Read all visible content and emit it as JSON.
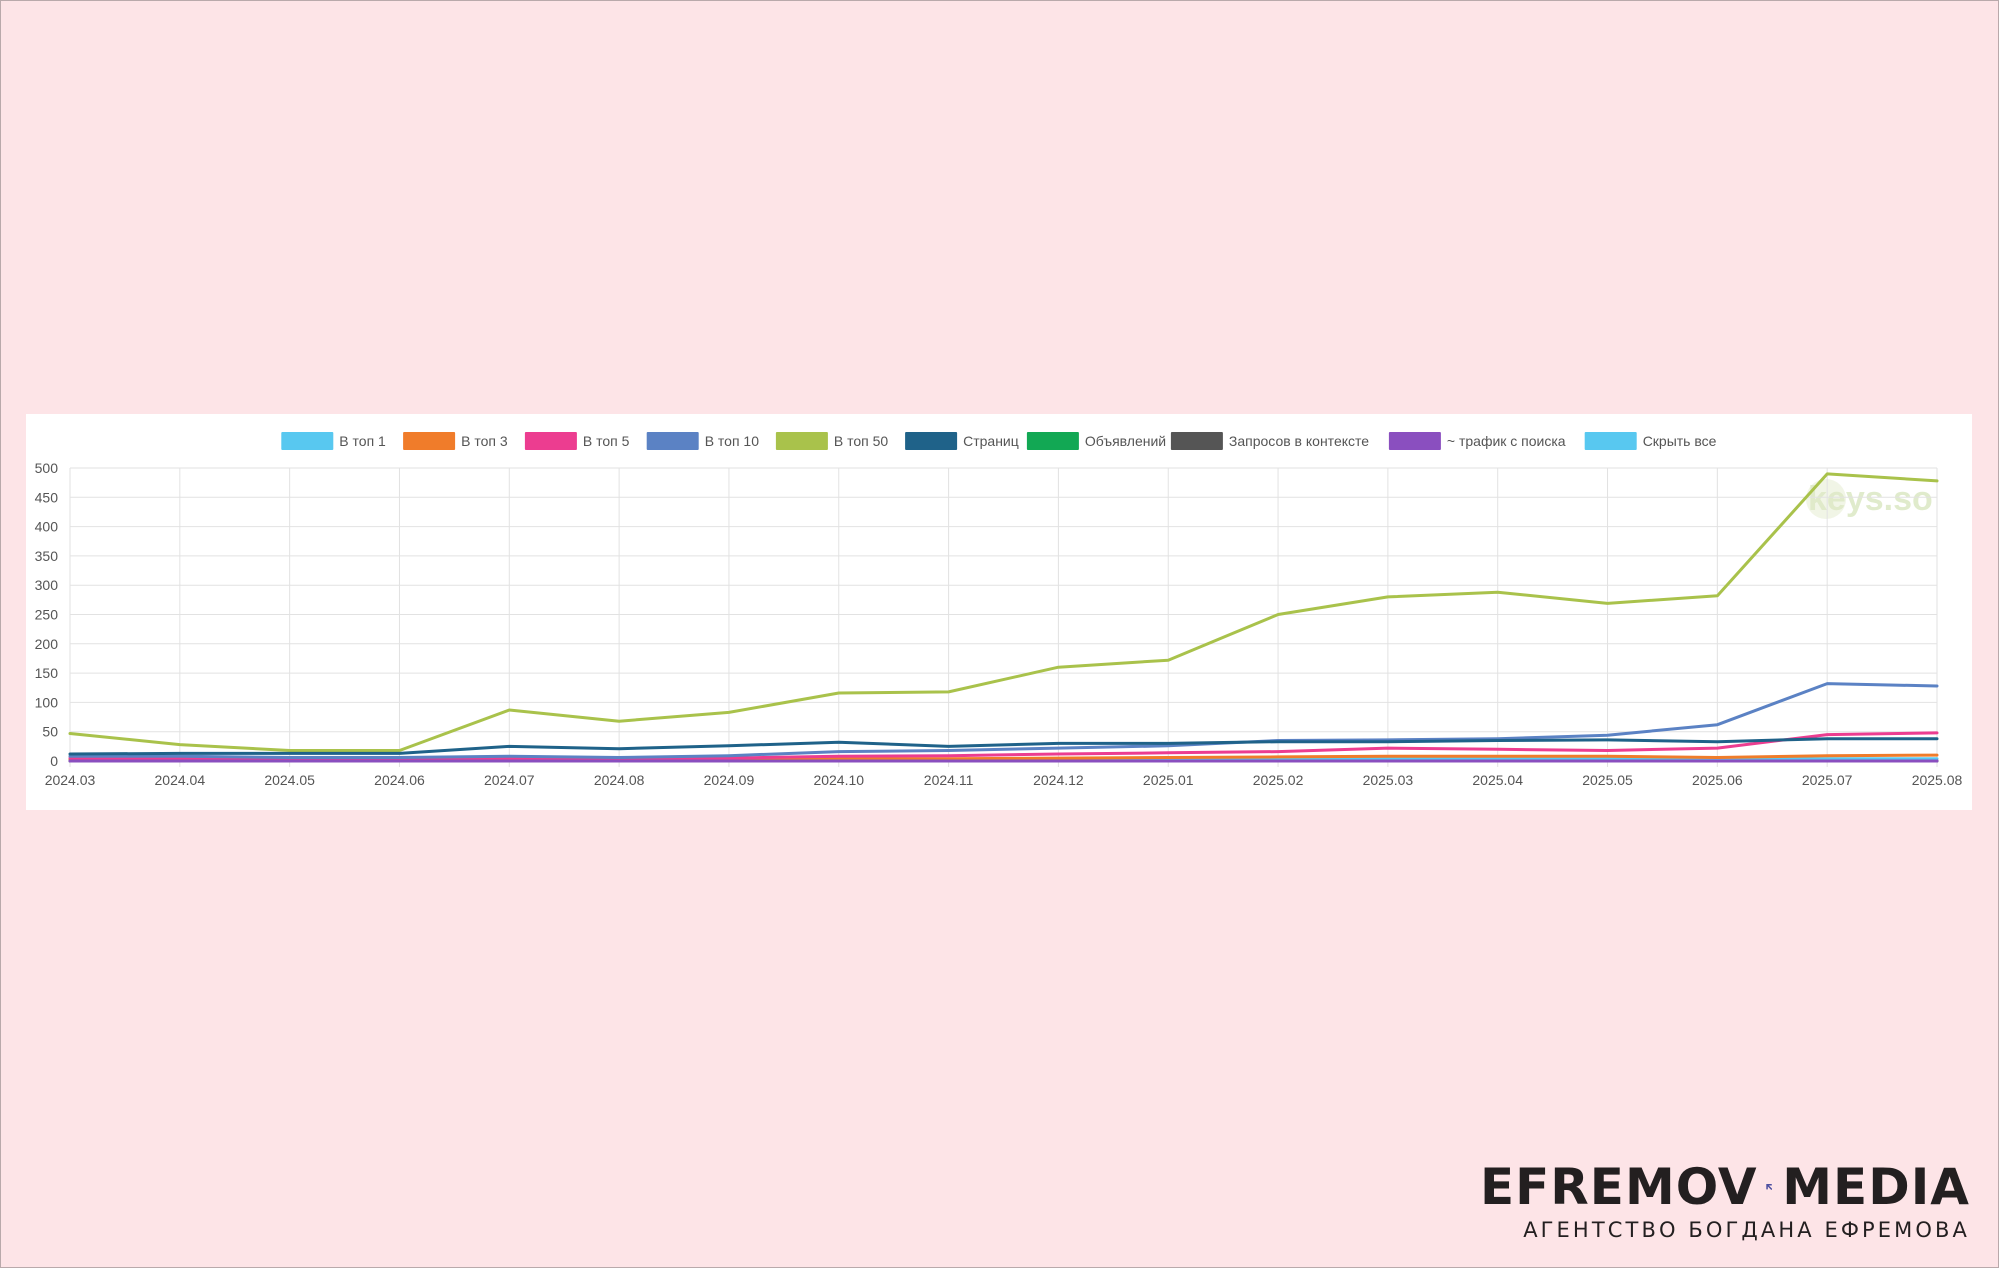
{
  "chart_data": {
    "type": "line",
    "title": "",
    "xlabel": "",
    "ylabel": "",
    "ylim": [
      0,
      500
    ],
    "yticks": [
      0,
      50,
      100,
      150,
      200,
      250,
      300,
      350,
      400,
      450,
      500
    ],
    "grid": true,
    "legend_position": "top",
    "x": [
      "2024.03",
      "2024.04",
      "2024.05",
      "2024.06",
      "2024.07",
      "2024.08",
      "2024.09",
      "2024.10",
      "2024.11",
      "2024.12",
      "2025.01",
      "2025.02",
      "2025.03",
      "2025.04",
      "2025.05",
      "2025.06",
      "2025.07",
      "2025.08"
    ],
    "series": [
      {
        "name": "В топ 1",
        "color": "#58c8f0",
        "values": [
          2,
          2,
          2,
          2,
          2,
          1,
          2,
          2,
          2,
          3,
          3,
          3,
          4,
          4,
          4,
          3,
          4,
          4
        ]
      },
      {
        "name": "В топ 3",
        "color": "#f07c2a",
        "values": [
          3,
          3,
          3,
          3,
          3,
          2,
          3,
          4,
          4,
          5,
          6,
          7,
          8,
          8,
          8,
          6,
          9,
          10
        ]
      },
      {
        "name": "В топ 5",
        "color": "#ec3d90",
        "values": [
          5,
          5,
          5,
          5,
          5,
          3,
          5,
          8,
          9,
          12,
          14,
          16,
          22,
          20,
          18,
          22,
          45,
          48
        ]
      },
      {
        "name": "В топ 10",
        "color": "#5b82c4",
        "values": [
          8,
          8,
          6,
          6,
          8,
          6,
          9,
          16,
          18,
          22,
          26,
          35,
          36,
          38,
          44,
          62,
          132,
          128
        ]
      },
      {
        "name": "В топ 50",
        "color": "#a9c24b",
        "values": [
          47,
          28,
          18,
          18,
          87,
          68,
          83,
          116,
          118,
          160,
          172,
          250,
          280,
          288,
          269,
          282,
          490,
          478
        ]
      },
      {
        "name": "Страниц",
        "color": "#1f6289",
        "values": [
          12,
          13,
          13,
          13,
          25,
          21,
          26,
          32,
          25,
          30,
          30,
          33,
          33,
          35,
          36,
          33,
          38,
          38
        ]
      },
      {
        "name": "Объявлений",
        "color": "#12a854",
        "values": [
          0,
          0,
          0,
          0,
          0,
          0,
          0,
          0,
          0,
          0,
          0,
          0,
          0,
          0,
          0,
          0,
          0,
          0
        ]
      },
      {
        "name": "Запросов в контексте",
        "color": "#555555",
        "values": [
          0,
          0,
          0,
          0,
          0,
          0,
          0,
          0,
          0,
          0,
          0,
          0,
          0,
          0,
          0,
          0,
          0,
          0
        ]
      },
      {
        "name": "~ трафик с поиска",
        "color": "#8a4fbf",
        "values": [
          0,
          0,
          0,
          0,
          0,
          0,
          0,
          0,
          0,
          0,
          0,
          0,
          0,
          0,
          0,
          0,
          0,
          0
        ]
      }
    ],
    "legend_extra": {
      "name": "Скрыть все",
      "color": "#58c8f0"
    },
    "watermark": "keys.so"
  },
  "brand": {
    "name_left": "EFREMOV",
    "name_right": "MEDIA",
    "tagline": "АГЕНТСТВО БОГДАНА ЕФРЕМОВА",
    "arrow_color": "#4c4fa0",
    "text_color": "#231f20"
  },
  "colors": {
    "background": "#fde4e7",
    "card": "#ffffff",
    "grid": "#e2e2e2"
  }
}
